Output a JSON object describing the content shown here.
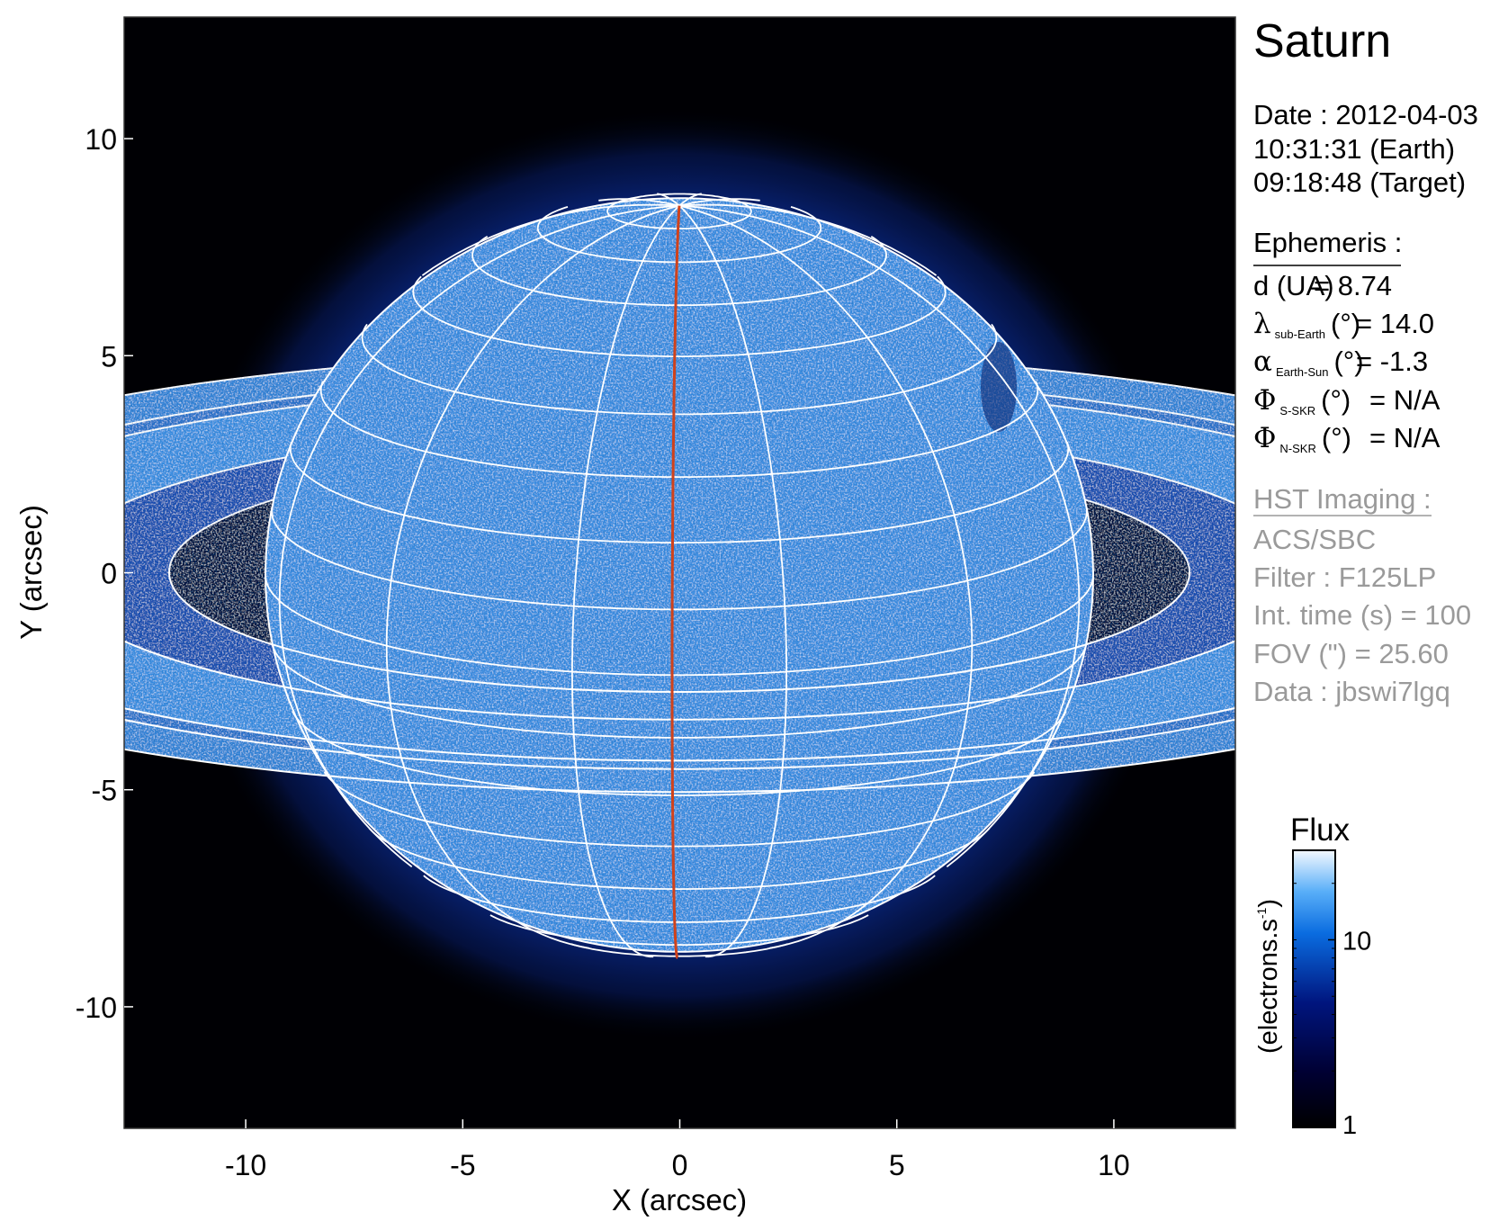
{
  "chart_data": {
    "type": "heatmap",
    "title": "Saturn",
    "xlabel": "X (arcsec)",
    "ylabel": "Y (arcsec)",
    "xlim": [
      -12.8,
      12.8
    ],
    "ylim": [
      -12.8,
      12.8
    ],
    "xticks": [
      "-10",
      "-5",
      "0",
      "5",
      "10"
    ],
    "xtick_values": [
      -10,
      -5,
      0,
      5,
      10
    ],
    "yticks": [
      "10",
      "5",
      "0",
      "-5",
      "-10"
    ],
    "ytick_values": [
      10,
      5,
      0,
      -5,
      -10
    ],
    "grid_overlay": "planetographic latitude/longitude grid with ring edges",
    "colorbar": {
      "title": "Flux",
      "label": "(electrons.s",
      "label_exp": "-1",
      "label_close": ")",
      "scale": "log",
      "range": [
        1,
        30
      ],
      "ticks": [
        "1",
        "10"
      ],
      "tick_values": [
        1,
        10
      ],
      "colormap": [
        "#000000",
        "#00005a",
        "#0a3fb0",
        "#1a8cf0",
        "#7cc4ff",
        "#ffffff"
      ]
    },
    "colors": {
      "grid": "#ffffff",
      "central_meridian": "#d0421b",
      "background": "#000000"
    }
  },
  "info": {
    "target": "Saturn",
    "date": "Date : 2012-04-03",
    "time_earth": "10:31:31 (Earth)",
    "time_target": "09:18:48 (Target)",
    "ephemeris": {
      "heading": "Ephemeris :",
      "rows": [
        {
          "symbol": "d (UA)",
          "sub": "",
          "unit": "",
          "value": "= 8.74"
        },
        {
          "symbol": "λ",
          "sub": "sub-Earth",
          "unit": "(°)",
          "value": "= 14.0"
        },
        {
          "symbol": "α",
          "sub": "Earth-Sun",
          "unit": "(°)",
          "value": "= -1.3"
        },
        {
          "symbol": "Φ",
          "sub": "S-SKR",
          "unit": "(°)",
          "value": "= N/A"
        },
        {
          "symbol": "Φ",
          "sub": "N-SKR",
          "unit": "(°)",
          "value": "= N/A"
        }
      ]
    },
    "imaging": {
      "heading": "HST Imaging :",
      "lines": [
        "ACS/SBC",
        "Filter : F125LP",
        "Int. time (s) = 100",
        "FOV (\") = 25.60",
        "Data : jbswi7lgq"
      ]
    }
  }
}
